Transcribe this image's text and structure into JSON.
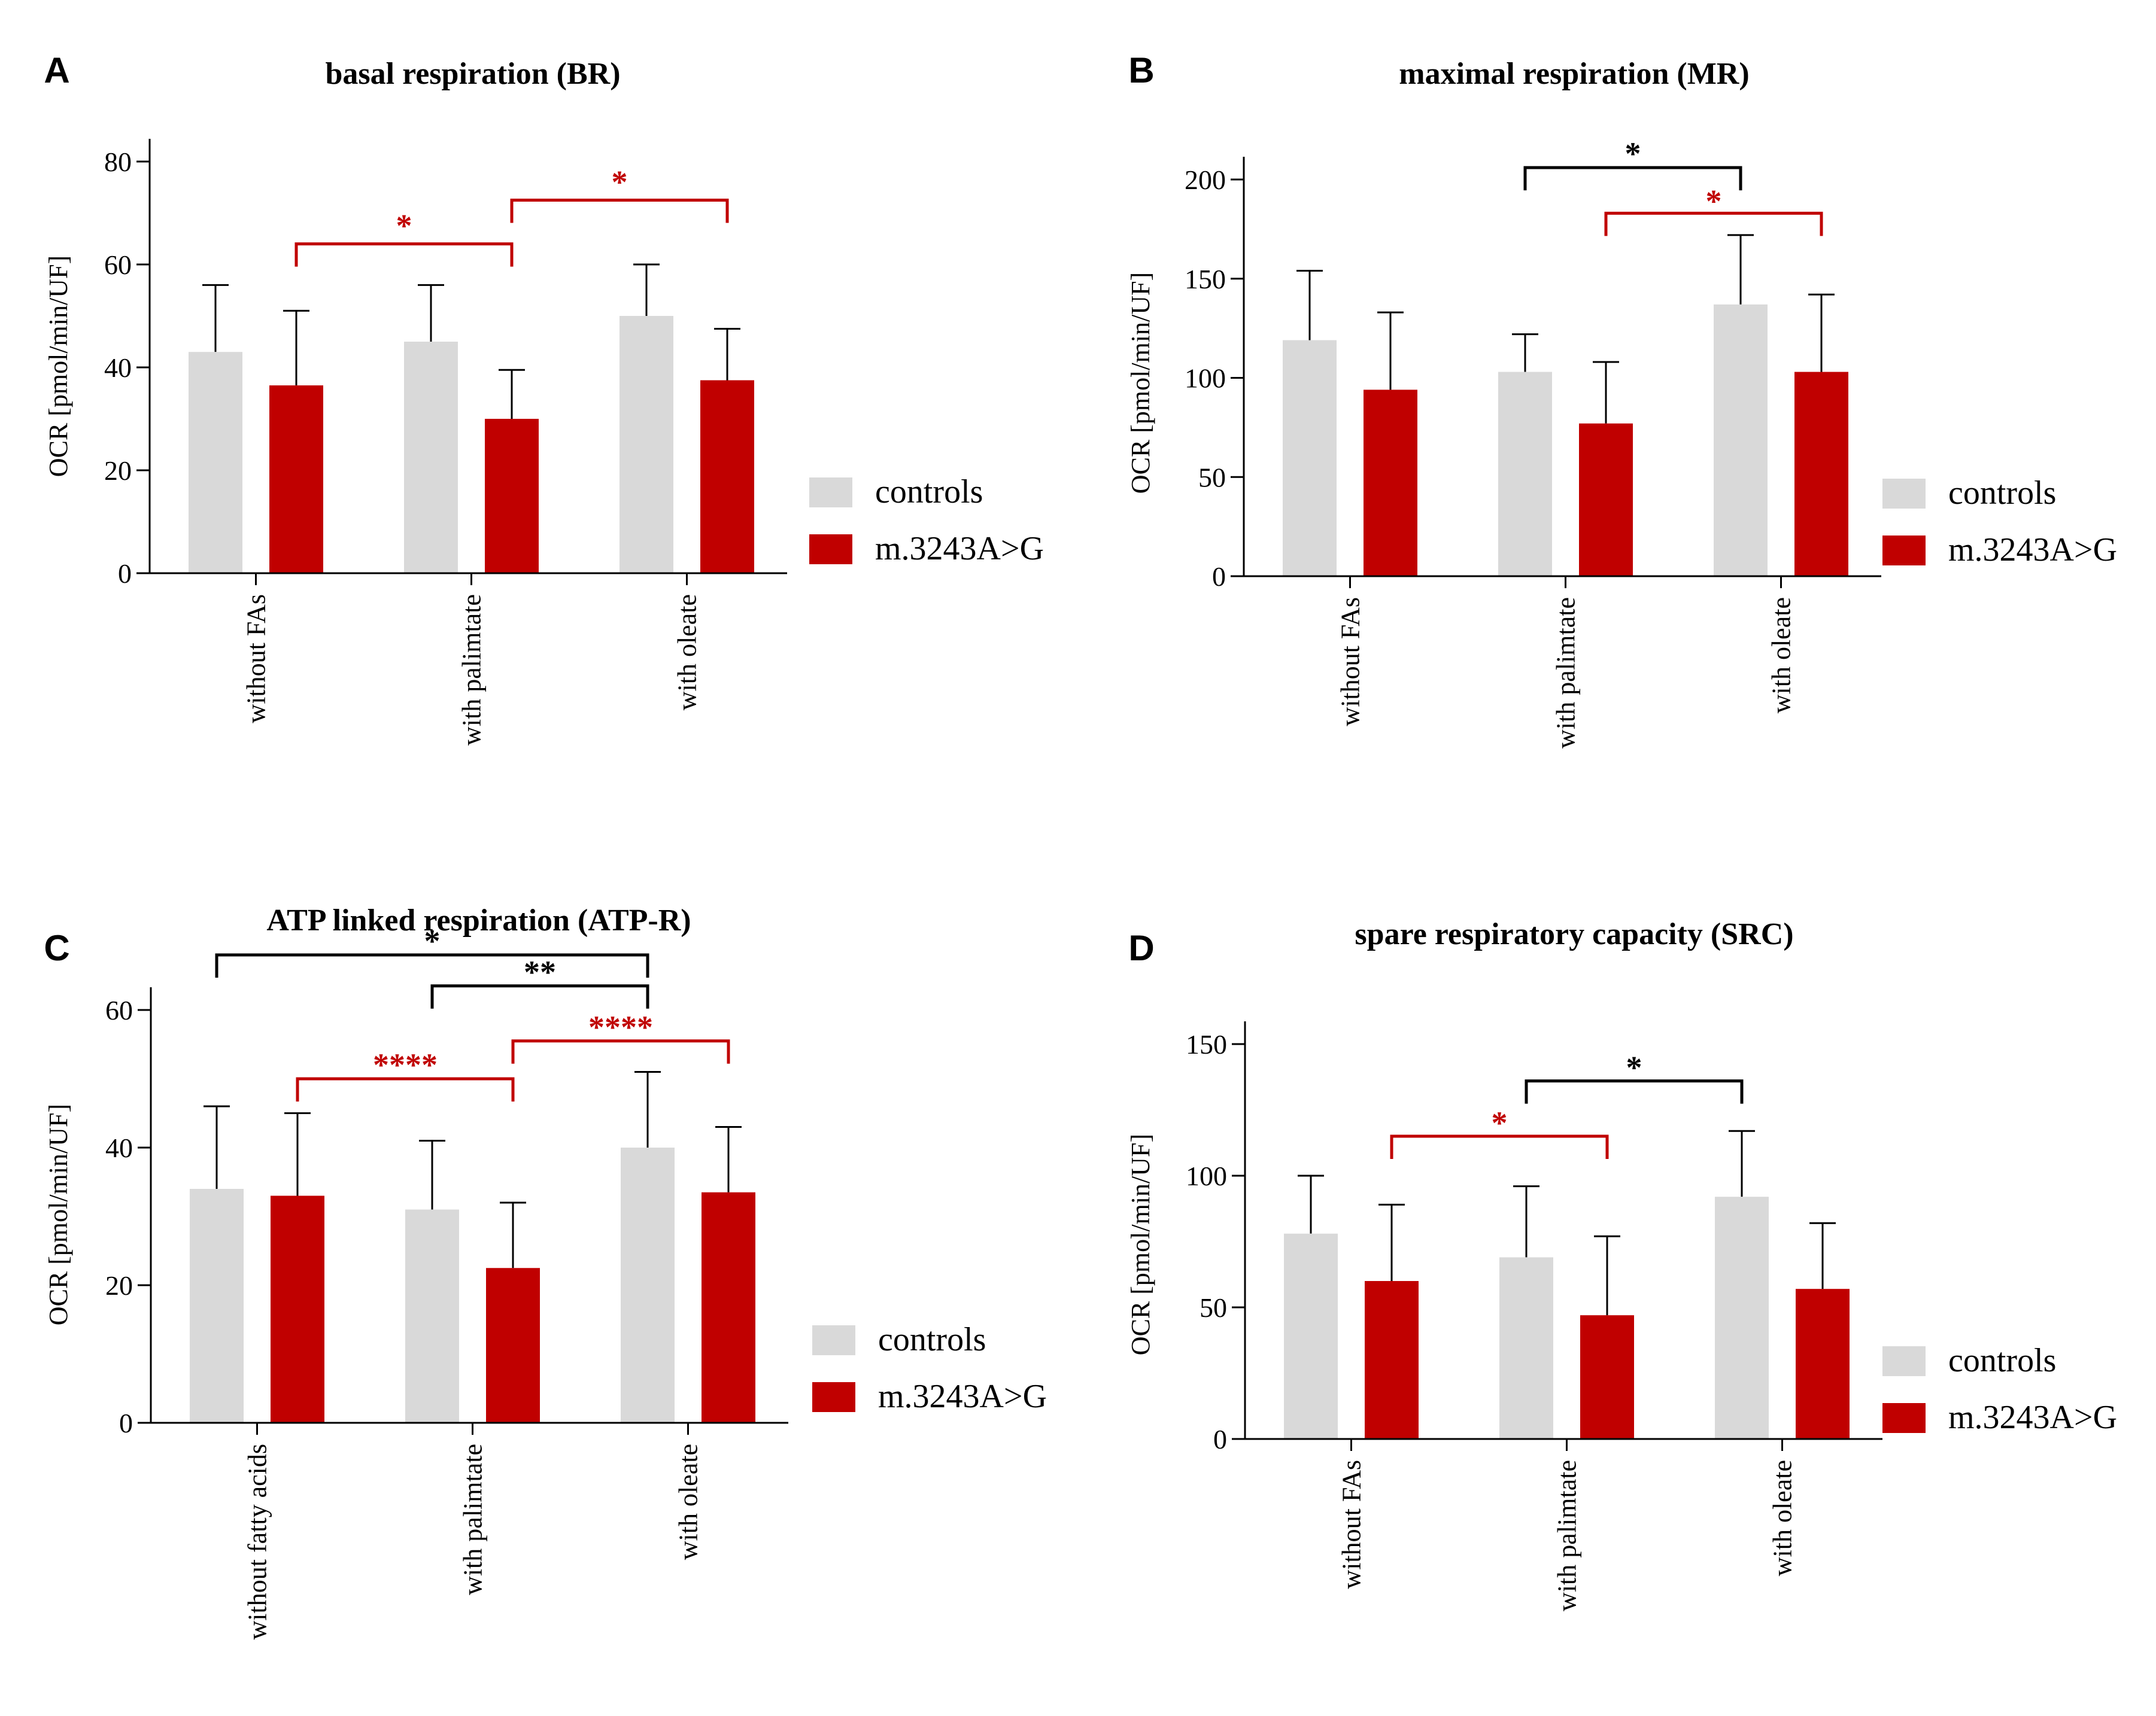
{
  "colors": {
    "controls": "#d9d9d9",
    "mutant": "#c00000",
    "axis": "#000000",
    "sig_black": "#000000",
    "sig_red": "#c00000"
  },
  "chart_data": [
    {
      "panel": "A",
      "type": "bar",
      "title": "basal respiration (BR)",
      "ylabel": "OCR [pmol/min/UF]",
      "ylim": [
        0,
        80
      ],
      "yticks": [
        0,
        20,
        40,
        60,
        80
      ],
      "categories": [
        "without FAs",
        "with palimtate",
        "with oleate"
      ],
      "series": [
        {
          "name": "controls",
          "values": [
            43,
            45,
            50
          ],
          "errors": [
            13,
            11,
            10
          ]
        },
        {
          "name": "m.3243A>G",
          "values": [
            36.5,
            30,
            37.5
          ],
          "errors": [
            14.5,
            9.5,
            10
          ]
        }
      ],
      "significance": [
        {
          "label": "*",
          "color": "red",
          "from": [
            0,
            1
          ],
          "to": [
            1,
            1
          ],
          "y": 64,
          "text_y": 67.5
        },
        {
          "label": "*",
          "color": "red",
          "from": [
            1,
            1
          ],
          "to": [
            2,
            1
          ],
          "y": 72.5,
          "text_y": 76
        }
      ],
      "legend": [
        "controls",
        "m.3243A>G"
      ]
    },
    {
      "panel": "B",
      "type": "bar",
      "title": "maximal respiration (MR)",
      "ylabel": "OCR [pmol/min/UF]",
      "ylim": [
        0,
        200
      ],
      "yticks": [
        0,
        50,
        100,
        150,
        200
      ],
      "categories": [
        "without FAs",
        "with palimtate",
        "with oleate"
      ],
      "series": [
        {
          "name": "controls",
          "values": [
            119,
            103,
            137
          ],
          "errors": [
            35,
            19,
            35
          ]
        },
        {
          "name": "m.3243A>G",
          "values": [
            94,
            77,
            103
          ],
          "errors": [
            39,
            31,
            39
          ]
        }
      ],
      "significance": [
        {
          "label": "*",
          "color": "black",
          "from": [
            1,
            0
          ],
          "to": [
            2,
            0
          ],
          "y": 206,
          "text_y": 213
        },
        {
          "label": "*",
          "color": "red",
          "from": [
            1,
            1
          ],
          "to": [
            2,
            1
          ],
          "y": 183,
          "text_y": 189
        }
      ],
      "legend": [
        "controls",
        "m.3243A>G"
      ]
    },
    {
      "panel": "C",
      "type": "bar",
      "title": "ATP linked respiration (ATP-R)",
      "ylabel": "OCR [pmol/min/UF]",
      "ylim": [
        0,
        60
      ],
      "yticks": [
        0,
        20,
        40,
        60
      ],
      "categories": [
        "without fatty acids",
        "with palimtate",
        "with oleate"
      ],
      "series": [
        {
          "name": "controls",
          "values": [
            34,
            31,
            40
          ],
          "errors": [
            12,
            10,
            11
          ]
        },
        {
          "name": "m.3243A>G",
          "values": [
            33,
            22.5,
            33.5
          ],
          "errors": [
            12,
            9.5,
            9.5
          ]
        }
      ],
      "significance": [
        {
          "label": "*",
          "color": "black",
          "from": [
            0,
            0
          ],
          "to": [
            2,
            0
          ],
          "y": 68,
          "text_y": 70
        },
        {
          "label": "**",
          "color": "black",
          "from": [
            1,
            0
          ],
          "to": [
            2,
            0
          ],
          "y": 63.5,
          "text_y": 65.5
        },
        {
          "label": "****",
          "color": "red",
          "from": [
            0,
            1
          ],
          "to": [
            1,
            1
          ],
          "y": 50,
          "text_y": 52
        },
        {
          "label": "****",
          "color": "red",
          "from": [
            1,
            1
          ],
          "to": [
            2,
            1
          ],
          "y": 55.5,
          "text_y": 57.5
        }
      ],
      "legend": [
        "controls",
        "m.3243A>G"
      ]
    },
    {
      "panel": "D",
      "type": "bar",
      "title": "spare respiratory capacity (SRC)",
      "ylabel": "OCR [pmol/min/UF]",
      "ylim": [
        0,
        150
      ],
      "yticks": [
        0,
        50,
        100,
        150
      ],
      "categories": [
        "without FAs",
        "with palimtate",
        "with oleate"
      ],
      "series": [
        {
          "name": "controls",
          "values": [
            78,
            69,
            92
          ],
          "errors": [
            22,
            27,
            25
          ]
        },
        {
          "name": "m.3243A>G",
          "values": [
            60,
            47,
            57
          ],
          "errors": [
            29,
            30,
            25
          ]
        }
      ],
      "significance": [
        {
          "label": "*",
          "color": "red",
          "from": [
            0,
            1
          ],
          "to": [
            1,
            1
          ],
          "y": 115,
          "text_y": 120
        },
        {
          "label": "*",
          "color": "black",
          "from": [
            1,
            0
          ],
          "to": [
            2,
            0
          ],
          "y": 136,
          "text_y": 141
        }
      ],
      "legend": [
        "controls",
        "m.3243A>G"
      ]
    }
  ]
}
